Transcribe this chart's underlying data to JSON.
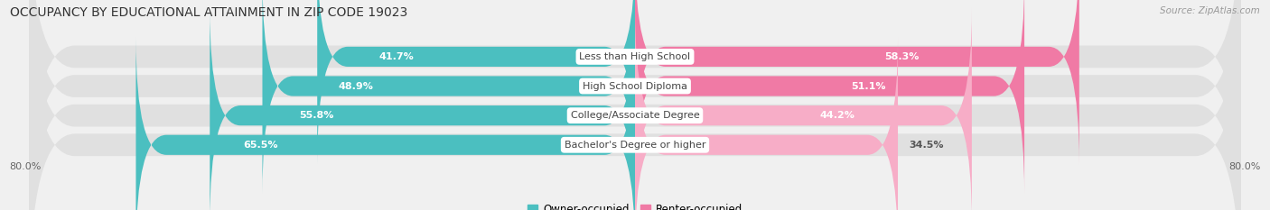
{
  "title": "OCCUPANCY BY EDUCATIONAL ATTAINMENT IN ZIP CODE 19023",
  "source": "Source: ZipAtlas.com",
  "categories": [
    "Less than High School",
    "High School Diploma",
    "College/Associate Degree",
    "Bachelor's Degree or higher"
  ],
  "owner_values": [
    41.7,
    48.9,
    55.8,
    65.5
  ],
  "renter_values": [
    58.3,
    51.1,
    44.2,
    34.5
  ],
  "owner_color": "#4bbfc0",
  "renter_color": "#f07aa5",
  "renter_color_light": "#f7adc7",
  "xlim_left": -80,
  "xlim_right": 80,
  "background_color": "#f0f0f0",
  "bar_background": "#dcdcdc",
  "row_background": "#f8f8f8",
  "title_fontsize": 10,
  "source_fontsize": 7.5,
  "value_fontsize": 8,
  "cat_fontsize": 8,
  "bar_height": 0.68
}
